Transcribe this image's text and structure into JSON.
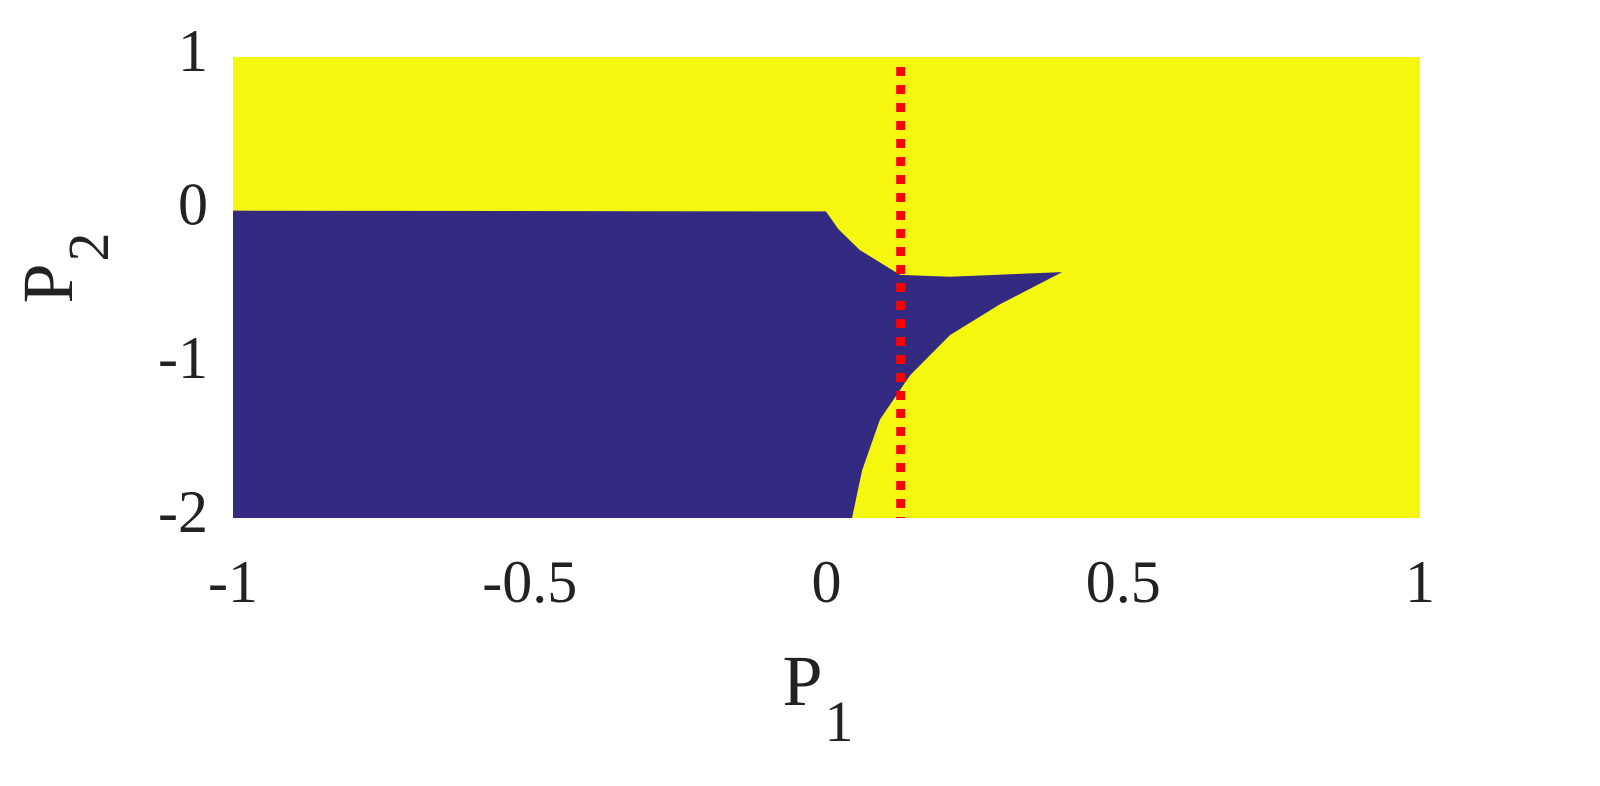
{
  "chart_data": {
    "type": "region",
    "background_color": "#f5f70f",
    "region": {
      "color": "#332a82",
      "x": [
        -1,
        -0.001,
        0.02,
        0.056,
        0.124,
        0.208,
        0.397,
        0.292,
        0.208,
        0.141,
        0.09,
        0.06,
        0.043,
        -1
      ],
      "y": [
        0,
        -0.005,
        -0.12,
        -0.256,
        -0.418,
        -0.43,
        -0.4,
        -0.61,
        -0.81,
        -1.07,
        -1.36,
        -1.69,
        -2,
        -2
      ]
    },
    "reference_line": {
      "x": 0.125,
      "color": "#ff0000",
      "style": "dotted"
    },
    "xlabel": {
      "text": "P",
      "subscript": "1"
    },
    "ylabel": {
      "text": "P",
      "subscript": "2"
    },
    "xlim": [
      -1,
      1
    ],
    "xticks": [
      -1,
      -0.5,
      0,
      0.5,
      1
    ],
    "ylim": [
      -2,
      1
    ],
    "yticks": [
      -2,
      -1,
      0,
      1
    ],
    "grid": false
  }
}
